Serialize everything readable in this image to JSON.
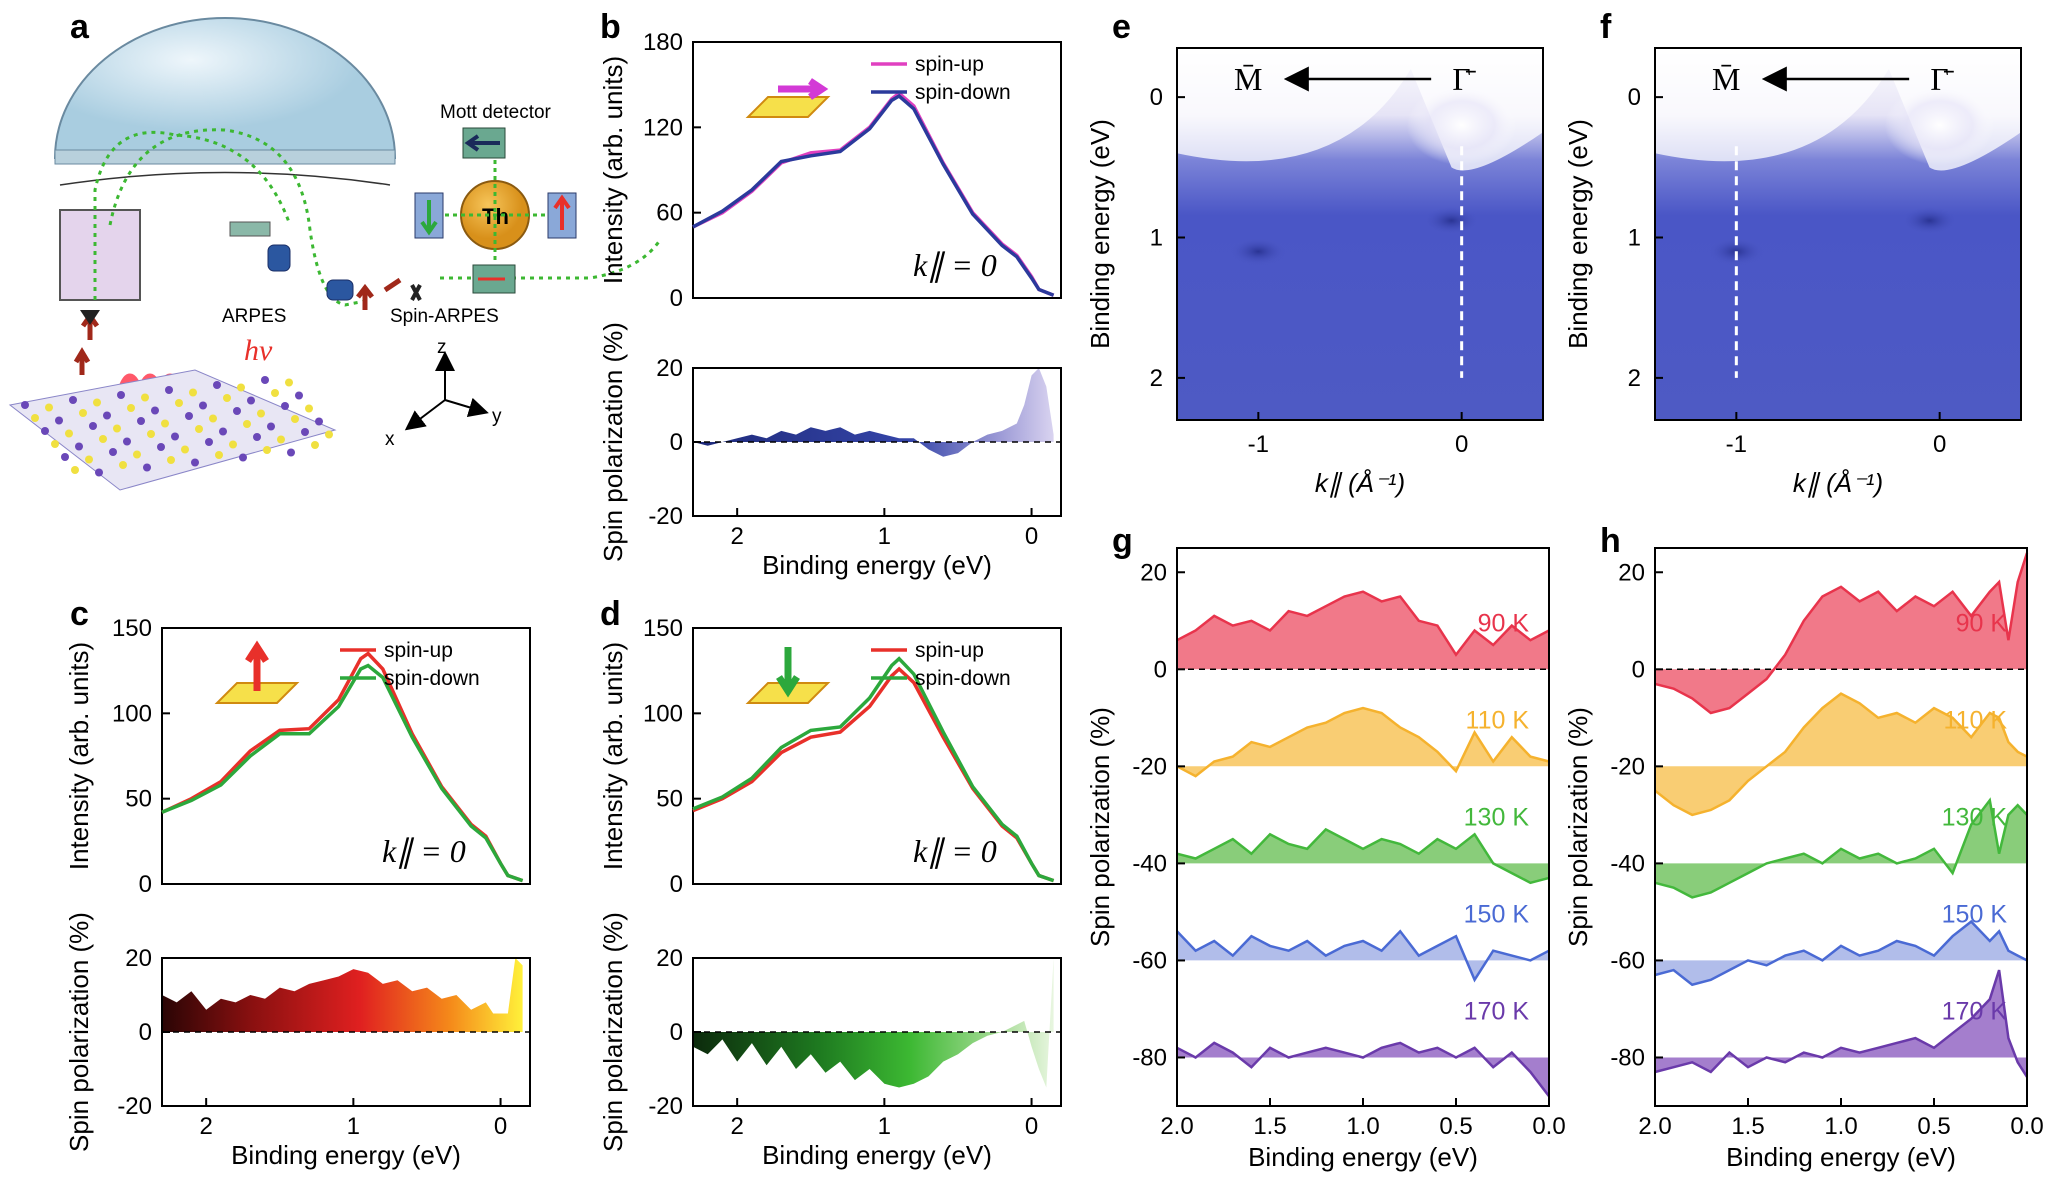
{
  "colors": {
    "pink": "#e040c0",
    "navy": "#2b3a9c",
    "red": "#e8302a",
    "green": "#2ca83c",
    "map_blue": "#4a56c6",
    "t90": "#e8344c",
    "t110": "#f5b22e",
    "t130": "#43b83c",
    "t150": "#4a6ad4",
    "t170": "#6a3aaa"
  },
  "panels": {
    "a": {
      "label": "a",
      "mott": "Mott detector",
      "th": "Th",
      "arpes": "ARPES",
      "spin_arpes": "Spin-ARPES",
      "hv": "hν",
      "ax_x": "x",
      "ax_y": "y",
      "ax_z": "z"
    },
    "b": {
      "label": "b"
    },
    "c": {
      "label": "c"
    },
    "d": {
      "label": "d"
    },
    "e": {
      "label": "e"
    },
    "f": {
      "label": "f"
    },
    "g": {
      "label": "g"
    },
    "h": {
      "label": "h"
    }
  },
  "common": {
    "xlabel": "Binding energy (eV)",
    "ylabel_int": "Intensity (arb. units)",
    "ylabel_pol": "Spin polarization (%)",
    "ylabel_pol_g": "Spin polarization  (%)",
    "ylabel_be": "Binding energy (eV)",
    "klabel": "k∥ = 0",
    "kaxis": "k∥ (Å⁻¹)",
    "spin_up": "spin-up",
    "spin_down": "spin-down",
    "gamma": "Γ̄",
    "m": "M̄"
  },
  "chart_data": [
    {
      "id": "b_intensity",
      "type": "line",
      "title": "",
      "xlabel": "",
      "ylabel": "Intensity (arb. units)",
      "xlim": [
        2.3,
        -0.2
      ],
      "ylim": [
        0,
        180
      ],
      "yticks": [
        0,
        60,
        120,
        180
      ],
      "x": [
        2.3,
        2.1,
        1.9,
        1.7,
        1.5,
        1.3,
        1.1,
        0.95,
        0.9,
        0.8,
        0.6,
        0.4,
        0.2,
        0.1,
        0.0,
        -0.05,
        -0.15
      ],
      "series": [
        {
          "name": "spin-up",
          "values": [
            50,
            60,
            75,
            95,
            102,
            104,
            120,
            140,
            144,
            135,
            95,
            60,
            38,
            30,
            15,
            6,
            2
          ]
        },
        {
          "name": "spin-down",
          "values": [
            50,
            61,
            76,
            96,
            100,
            103,
            119,
            139,
            142,
            133,
            94,
            59,
            37,
            29,
            14,
            6,
            2
          ]
        }
      ]
    },
    {
      "id": "b_polarization",
      "type": "area",
      "xlabel": "Binding energy (eV)",
      "ylabel": "Spin polarization (%)",
      "xlim": [
        2.3,
        -0.2
      ],
      "ylim": [
        -20,
        20
      ],
      "xticks": [
        2,
        1,
        0
      ],
      "yticks": [
        -20,
        0,
        20
      ],
      "x": [
        2.3,
        2.2,
        2.1,
        2.0,
        1.9,
        1.8,
        1.7,
        1.6,
        1.5,
        1.4,
        1.3,
        1.2,
        1.1,
        1.0,
        0.9,
        0.8,
        0.7,
        0.6,
        0.5,
        0.4,
        0.3,
        0.2,
        0.1,
        0.05,
        0.0,
        -0.05,
        -0.1,
        -0.15
      ],
      "values": [
        0,
        -1,
        0,
        1,
        2,
        1,
        3,
        2,
        4,
        3,
        4,
        2,
        3,
        2,
        1,
        1,
        -2,
        -4,
        -3,
        0,
        2,
        3,
        5,
        10,
        18,
        20,
        15,
        2
      ]
    },
    {
      "id": "c_intensity",
      "type": "line",
      "ylabel": "Intensity (arb. units)",
      "xlim": [
        2.3,
        -0.2
      ],
      "ylim": [
        0,
        150
      ],
      "yticks": [
        0,
        50,
        100,
        150
      ],
      "x": [
        2.3,
        2.1,
        1.9,
        1.7,
        1.5,
        1.3,
        1.1,
        0.95,
        0.9,
        0.8,
        0.6,
        0.4,
        0.2,
        0.1,
        0.0,
        -0.05,
        -0.15
      ],
      "series": [
        {
          "name": "spin-up",
          "values": [
            42,
            50,
            60,
            78,
            90,
            91,
            108,
            132,
            135,
            126,
            88,
            57,
            35,
            28,
            12,
            5,
            2
          ]
        },
        {
          "name": "spin-down",
          "values": [
            42,
            49,
            58,
            75,
            88,
            88,
            104,
            126,
            128,
            121,
            86,
            56,
            34,
            27,
            12,
            5,
            2
          ]
        }
      ]
    },
    {
      "id": "c_polarization",
      "type": "area",
      "xlabel": "Binding energy (eV)",
      "ylabel": "Spin polarization (%)",
      "xlim": [
        2.3,
        -0.2
      ],
      "ylim": [
        -20,
        20
      ],
      "xticks": [
        2,
        1,
        0
      ],
      "yticks": [
        -20,
        0,
        20
      ],
      "x": [
        2.3,
        2.2,
        2.1,
        2.0,
        1.9,
        1.8,
        1.7,
        1.6,
        1.5,
        1.4,
        1.3,
        1.2,
        1.1,
        1.0,
        0.9,
        0.8,
        0.7,
        0.6,
        0.5,
        0.4,
        0.3,
        0.2,
        0.1,
        0.05,
        -0.05,
        -0.1,
        -0.15
      ],
      "values": [
        10,
        8,
        11,
        6,
        9,
        8,
        10,
        9,
        12,
        11,
        13,
        14,
        15,
        17,
        16,
        13,
        14,
        11,
        12,
        9,
        10,
        6,
        8,
        5,
        5,
        20,
        18
      ]
    },
    {
      "id": "d_intensity",
      "type": "line",
      "ylabel": "Intensity (arb. units)",
      "xlim": [
        2.3,
        -0.2
      ],
      "ylim": [
        0,
        150
      ],
      "yticks": [
        0,
        50,
        100,
        150
      ],
      "x": [
        2.3,
        2.1,
        1.9,
        1.7,
        1.5,
        1.3,
        1.1,
        0.95,
        0.9,
        0.8,
        0.6,
        0.4,
        0.2,
        0.1,
        0.0,
        -0.05,
        -0.15
      ],
      "series": [
        {
          "name": "spin-up",
          "values": [
            43,
            50,
            60,
            77,
            86,
            89,
            104,
            122,
            126,
            118,
            86,
            56,
            34,
            27,
            12,
            5,
            2
          ]
        },
        {
          "name": "spin-down",
          "values": [
            44,
            51,
            62,
            80,
            90,
            92,
            109,
            128,
            132,
            123,
            89,
            57,
            35,
            28,
            12,
            5,
            2
          ]
        }
      ]
    },
    {
      "id": "d_polarization",
      "type": "area",
      "xlabel": "Binding energy (eV)",
      "ylabel": "Spin polarization (%)",
      "xlim": [
        2.3,
        -0.2
      ],
      "ylim": [
        -20,
        20
      ],
      "xticks": [
        2,
        1,
        0
      ],
      "yticks": [
        -20,
        0,
        20
      ],
      "x": [
        2.3,
        2.2,
        2.1,
        2.0,
        1.9,
        1.8,
        1.7,
        1.6,
        1.5,
        1.4,
        1.3,
        1.2,
        1.1,
        1.0,
        0.9,
        0.8,
        0.7,
        0.6,
        0.5,
        0.4,
        0.3,
        0.2,
        0.1,
        0.05,
        0.0,
        -0.05,
        -0.1,
        -0.15
      ],
      "values": [
        -4,
        -6,
        -2,
        -8,
        -3,
        -9,
        -4,
        -10,
        -6,
        -11,
        -8,
        -13,
        -10,
        -14,
        -15,
        -14,
        -12,
        -8,
        -6,
        -3,
        -1,
        0,
        2,
        3,
        -4,
        -10,
        -15,
        20
      ]
    },
    {
      "id": "g_temperature",
      "type": "area",
      "xlabel": "Binding energy (eV)",
      "ylabel": "Spin polarization  (%)",
      "xlim": [
        2.0,
        0.0
      ],
      "ylim": [
        -90,
        25
      ],
      "xticks": [
        "2.0",
        "1.5",
        "1.0",
        "0.5",
        "0.0"
      ],
      "yticks": [
        -80,
        -60,
        -40,
        -20,
        0,
        20
      ],
      "x": [
        2.0,
        1.9,
        1.8,
        1.7,
        1.6,
        1.5,
        1.4,
        1.3,
        1.2,
        1.1,
        1.0,
        0.9,
        0.8,
        0.7,
        0.6,
        0.5,
        0.4,
        0.3,
        0.2,
        0.1,
        0.0
      ],
      "series": [
        {
          "name": "90 K",
          "offset": 0,
          "values": [
            6,
            8,
            11,
            9,
            10,
            8,
            12,
            11,
            13,
            15,
            16,
            14,
            15,
            10,
            9,
            3,
            8,
            5,
            9,
            6,
            8
          ]
        },
        {
          "name": "110 K",
          "offset": -20,
          "values": [
            0,
            -2,
            1,
            2,
            5,
            4,
            6,
            8,
            9,
            11,
            12,
            11,
            8,
            6,
            3,
            -1,
            7,
            1,
            6,
            2,
            1
          ]
        },
        {
          "name": "130 K",
          "offset": -40,
          "values": [
            2,
            1,
            3,
            5,
            2,
            6,
            4,
            3,
            7,
            5,
            3,
            5,
            4,
            2,
            5,
            3,
            6,
            0,
            -2,
            -4,
            -3
          ]
        },
        {
          "name": "150 K",
          "offset": -60,
          "values": [
            6,
            2,
            4,
            1,
            5,
            3,
            2,
            4,
            1,
            3,
            4,
            2,
            6,
            1,
            3,
            5,
            -4,
            2,
            1,
            0,
            2
          ]
        },
        {
          "name": "170 K",
          "offset": -80,
          "values": [
            2,
            0,
            3,
            1,
            -2,
            2,
            0,
            1,
            2,
            1,
            0,
            2,
            3,
            1,
            2,
            0,
            2,
            -2,
            1,
            -3,
            -8
          ]
        }
      ]
    },
    {
      "id": "h_temperature",
      "type": "area",
      "xlabel": "Binding energy (eV)",
      "ylabel": "Spin polarization  (%)",
      "xlim": [
        2.0,
        0.0
      ],
      "ylim": [
        -90,
        25
      ],
      "xticks": [
        "2.0",
        "1.5",
        "1.0",
        "0.5",
        "0.0"
      ],
      "yticks": [
        -80,
        -60,
        -40,
        -20,
        0,
        20
      ],
      "x": [
        2.0,
        1.9,
        1.8,
        1.7,
        1.6,
        1.5,
        1.4,
        1.3,
        1.2,
        1.1,
        1.0,
        0.9,
        0.8,
        0.7,
        0.6,
        0.5,
        0.4,
        0.3,
        0.2,
        0.15,
        0.1,
        0.05,
        0.0
      ],
      "series": [
        {
          "name": "90 K",
          "offset": 0,
          "values": [
            -3,
            -4,
            -6,
            -9,
            -8,
            -5,
            -2,
            3,
            10,
            15,
            17,
            14,
            16,
            12,
            15,
            13,
            16,
            11,
            16,
            18,
            6,
            18,
            24
          ]
        },
        {
          "name": "110 K",
          "offset": -20,
          "values": [
            -5,
            -8,
            -10,
            -9,
            -7,
            -3,
            0,
            3,
            8,
            12,
            15,
            13,
            10,
            11,
            9,
            12,
            10,
            6,
            11,
            10,
            5,
            3,
            2
          ]
        },
        {
          "name": "130 K",
          "offset": -40,
          "values": [
            -4,
            -5,
            -7,
            -6,
            -4,
            -2,
            0,
            1,
            2,
            0,
            3,
            1,
            2,
            0,
            1,
            3,
            -2,
            8,
            13,
            2,
            10,
            12,
            10
          ]
        },
        {
          "name": "150 K",
          "offset": -60,
          "values": [
            -3,
            -2,
            -5,
            -4,
            -2,
            0,
            -1,
            1,
            2,
            0,
            3,
            1,
            2,
            4,
            3,
            1,
            5,
            8,
            4,
            6,
            2,
            1,
            0
          ]
        },
        {
          "name": "170 K",
          "offset": -80,
          "values": [
            -3,
            -2,
            -1,
            -3,
            1,
            -2,
            0,
            -1,
            1,
            0,
            2,
            1,
            2,
            3,
            4,
            2,
            5,
            8,
            12,
            18,
            4,
            -1,
            -4
          ]
        }
      ]
    },
    {
      "id": "e_map",
      "type": "heatmap",
      "xlabel": "k∥ (Å⁻¹)",
      "ylabel": "Binding energy (eV)",
      "xticks": [
        -1,
        0
      ],
      "yticks": [
        0,
        1,
        2
      ],
      "cut_k": 0,
      "high_symmetry": [
        "M̄",
        "Γ̄"
      ]
    },
    {
      "id": "f_map",
      "type": "heatmap",
      "xlabel": "k∥ (Å⁻¹)",
      "ylabel": "Binding energy (eV)",
      "xticks": [
        -1,
        0
      ],
      "yticks": [
        0,
        1,
        2
      ],
      "cut_k": -1,
      "high_symmetry": [
        "M̄",
        "Γ̄"
      ]
    }
  ]
}
